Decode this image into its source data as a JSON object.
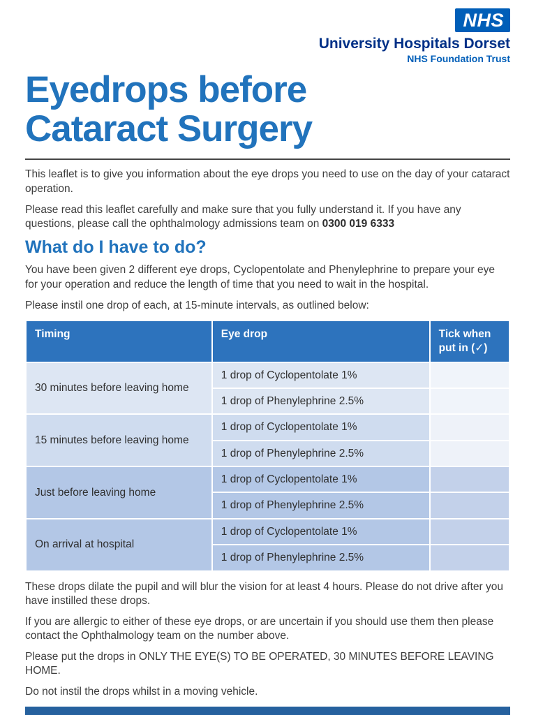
{
  "colors": {
    "nhs_blue": "#005EB8",
    "trust_name_blue": "#003087",
    "title_blue": "#2173bc",
    "table_header_blue": "#2d73bd",
    "row_shades": [
      "#dde6f3",
      "#cfdcef",
      "#b3c7e6",
      "#b3c7e6"
    ],
    "footer_blue": "#26619e"
  },
  "brand": {
    "logo": "NHS",
    "trust_name": "University Hospitals Dorset",
    "trust_type": "NHS Foundation Trust"
  },
  "title_lines": [
    "Eyedrops before",
    "Cataract Surgery"
  ],
  "intro": {
    "p1": "This leaflet is to give you information about the eye drops you need to use on the day of your cataract operation.",
    "p2": "Please read this leaflet carefully and make sure that you fully understand it. If you have any questions, please call the ophthalmology admissions team on ",
    "phone": "0300 019 6333"
  },
  "section": {
    "heading": "What do I have to do?",
    "p1": "You have been given 2 different eye drops, Cyclopentolate and Phenylephrine to prepare your eye for your operation and reduce the length of time that you need to wait in the hospital.",
    "p2": "Please instil one drop of each, at 15-minute intervals, as outlined below:"
  },
  "table": {
    "headers": [
      "Timing",
      "Eye drop",
      "Tick when put in (✓)"
    ],
    "groups": [
      {
        "timing": "30 minutes before leaving home",
        "drops": [
          "1 drop of Cyclopentolate 1%",
          "1 drop of Phenylephrine 2.5%"
        ]
      },
      {
        "timing": "15 minutes before leaving home",
        "drops": [
          "1 drop of Cyclopentolate 1%",
          "1 drop of Phenylephrine 2.5%"
        ]
      },
      {
        "timing": "Just before leaving home",
        "drops": [
          "1 drop of Cyclopentolate 1%",
          "1 drop of Phenylephrine 2.5%"
        ]
      },
      {
        "timing": "On arrival at hospital",
        "drops": [
          "1 drop of Cyclopentolate 1%",
          "1 drop of Phenylephrine 2.5%"
        ]
      }
    ]
  },
  "after_table": {
    "p1": "These drops dilate the pupil and will blur the vision for at least 4 hours. Please do not drive after you have instilled these drops.",
    "p2": "If you are allergic to either of these eye drops, or are uncertain if you should use them then please contact the Ophthalmology team on the number above.",
    "p3": "Please put the drops in ONLY THE EYE(S) TO BE OPERATED, 30 MINUTES BEFORE LEAVING HOME.",
    "p4": "Do not instil the drops whilst in a moving vehicle."
  }
}
